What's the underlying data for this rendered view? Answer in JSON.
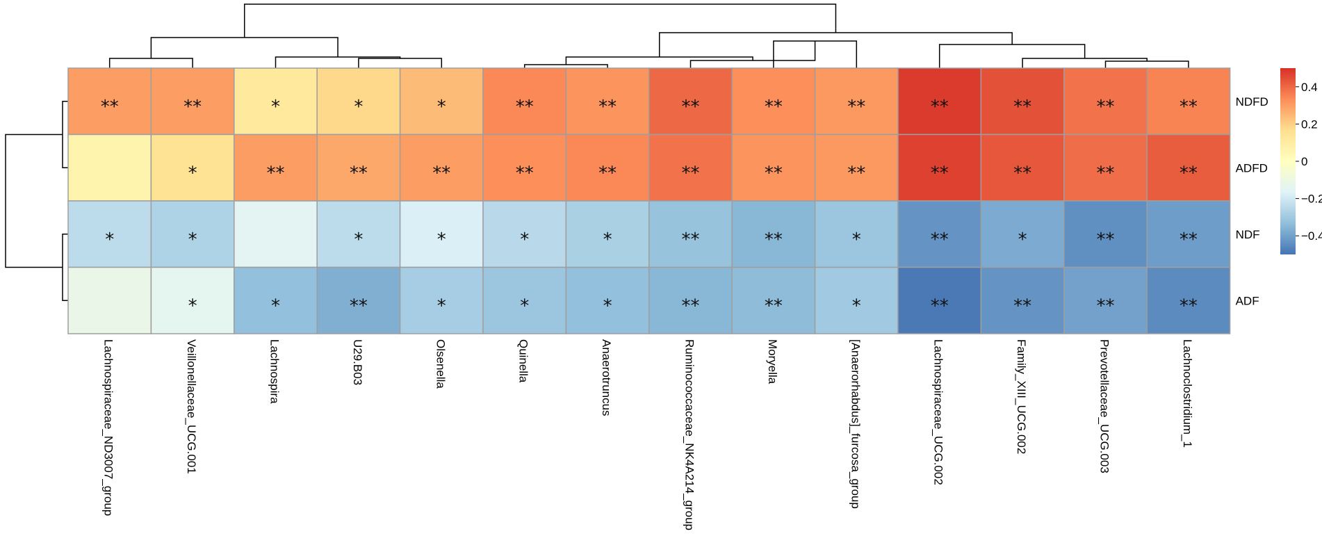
{
  "chart_data": {
    "type": "heatmap",
    "title": "",
    "columns": [
      "Lachnospiraceae_ND3007_group",
      "Veillonellaceae_UCG.001",
      "Lachnospira",
      "U29.B03",
      "Olsenella",
      "Quinella",
      "Anaerotruncus",
      "Ruminococcaceae_NK4A214_group",
      "Moryella",
      "[Anaerorhabdus]_furcosa_group",
      "Lachnospiraceae_UCG.002",
      "Family_XIII_UCG.002",
      "Prevotellaceae_UCG.003",
      "Lachnoclostridium_1"
    ],
    "rows": [
      "NDFD",
      "ADFD",
      "NDF",
      "ADF"
    ],
    "values": [
      [
        0.3,
        0.3,
        0.12,
        0.18,
        0.24,
        0.34,
        0.32,
        0.4,
        0.33,
        0.31,
        0.48,
        0.44,
        0.38,
        0.35
      ],
      [
        0.06,
        0.15,
        0.3,
        0.28,
        0.3,
        0.33,
        0.34,
        0.38,
        0.32,
        0.31,
        0.47,
        0.43,
        0.39,
        0.42
      ],
      [
        -0.24,
        -0.27,
        -0.15,
        -0.24,
        -0.18,
        -0.25,
        -0.28,
        -0.32,
        -0.35,
        -0.31,
        -0.43,
        -0.38,
        -0.44,
        -0.41
      ],
      [
        -0.12,
        -0.14,
        -0.33,
        -0.37,
        -0.29,
        -0.31,
        -0.33,
        -0.35,
        -0.34,
        -0.3,
        -0.49,
        -0.43,
        -0.4,
        -0.45
      ]
    ],
    "significance": [
      [
        "**",
        "**",
        "*",
        "*",
        "*",
        "**",
        "**",
        "**",
        "**",
        "**",
        "**",
        "**",
        "**",
        "**"
      ],
      [
        "",
        "*",
        "**",
        "**",
        "**",
        "**",
        "**",
        "**",
        "**",
        "**",
        "**",
        "**",
        "**",
        "**"
      ],
      [
        "*",
        "*",
        "",
        "*",
        "*",
        "*",
        "*",
        "**",
        "**",
        "*",
        "**",
        "*",
        "**",
        "**"
      ],
      [
        "",
        "*",
        "*",
        "**",
        "*",
        "*",
        "*",
        "**",
        "**",
        "*",
        "**",
        "**",
        "**",
        "**"
      ]
    ],
    "color_scale": {
      "min": -0.5,
      "max": 0.5,
      "low": "#4575b4",
      "mid": "#ffffbf",
      "high": "#d73027",
      "ramp": [
        "#4575b4",
        "#91bfdb",
        "#e0f3f8",
        "#ffffbf",
        "#fee090",
        "#fc8d59",
        "#d73027"
      ]
    },
    "legend": {
      "ticks": [
        0.4,
        0.2,
        0,
        -0.2,
        -0.4
      ],
      "tick_labels": [
        "0.4",
        "0.2",
        "0",
        "−0.2",
        "−0.4"
      ],
      "placement": "right"
    },
    "cell_border_color": "#9e9e9e",
    "column_dendrogram": true,
    "row_dendrogram": true
  }
}
